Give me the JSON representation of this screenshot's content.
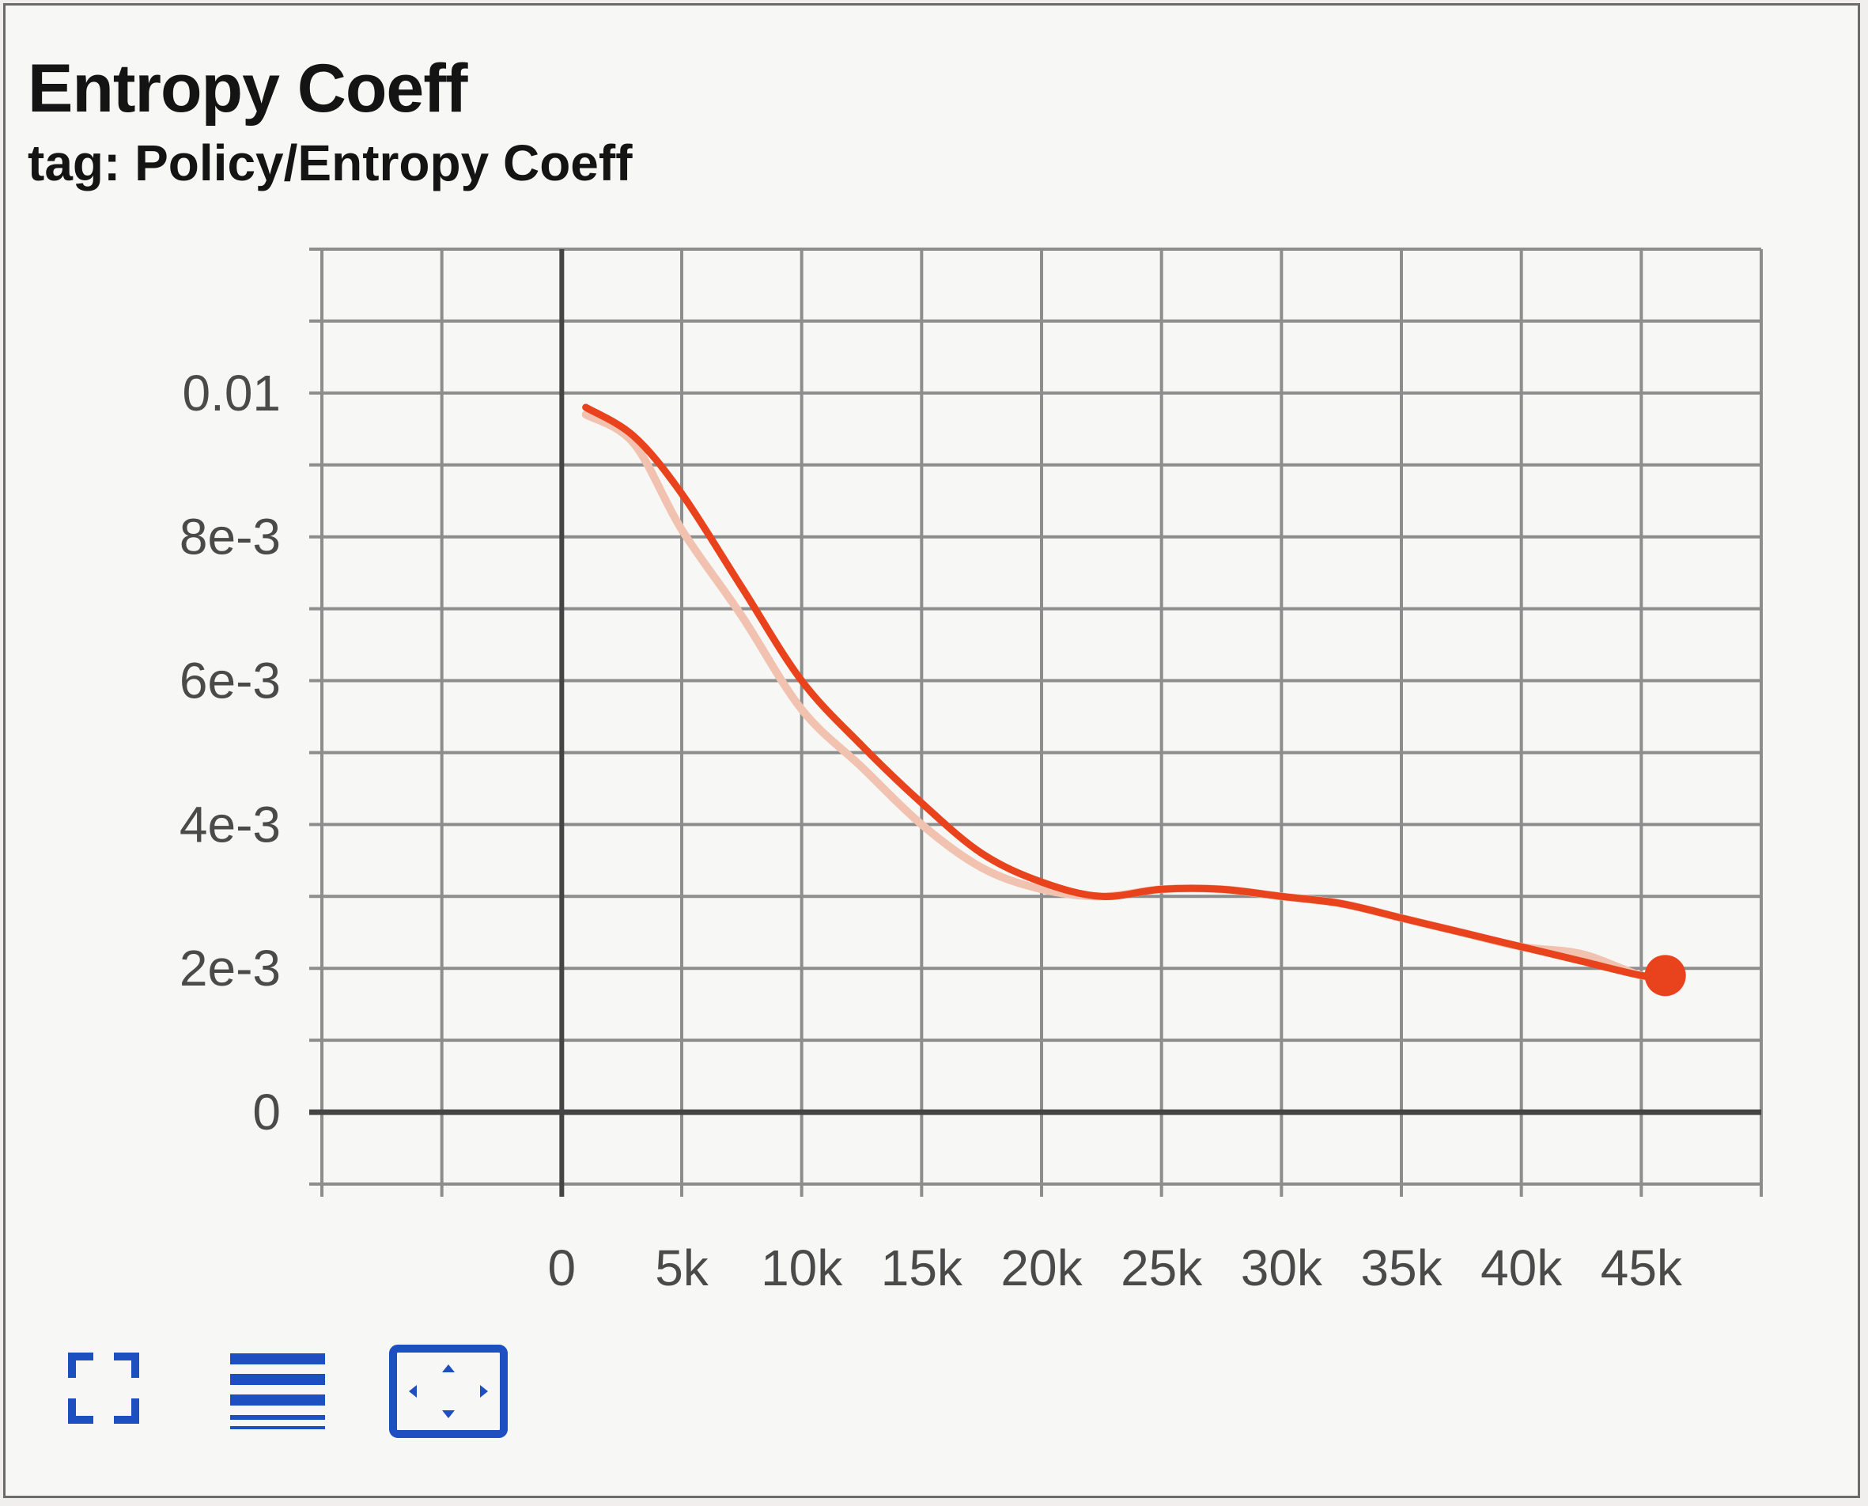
{
  "card": {
    "title": "Entropy Coeff",
    "subtitle": "tag: Policy/Entropy Coeff"
  },
  "chart_data": {
    "type": "line",
    "title": "Entropy Coeff",
    "subtitle": "tag: Policy/Entropy Coeff",
    "xlabel": "",
    "ylabel": "",
    "xlim": [
      -10000,
      50000
    ],
    "ylim": [
      -0.001,
      0.012
    ],
    "x_ticks": [
      0,
      5000,
      10000,
      15000,
      20000,
      25000,
      30000,
      35000,
      40000,
      45000
    ],
    "x_tick_labels": [
      "0",
      "5k",
      "10k",
      "15k",
      "20k",
      "25k",
      "30k",
      "35k",
      "40k",
      "45k"
    ],
    "y_ticks": [
      0,
      0.002,
      0.004,
      0.006,
      0.008,
      0.01
    ],
    "y_tick_labels": [
      "0",
      "2e-3",
      "4e-3",
      "6e-3",
      "8e-3",
      "0.01"
    ],
    "grid": true,
    "series": [
      {
        "color": "#f2c2b0",
        "x": [
          1000,
          3000,
          5000,
          7500,
          10000,
          12500,
          15000,
          17500,
          20000,
          22500,
          25000,
          27500,
          30000,
          32500,
          35000,
          37500,
          40000,
          42500,
          45000,
          46000
        ],
        "y": [
          0.0097,
          0.0093,
          0.0081,
          0.0069,
          0.0056,
          0.0048,
          0.004,
          0.0034,
          0.0031,
          0.003,
          0.0031,
          0.0031,
          0.003,
          0.0029,
          0.0027,
          0.0025,
          0.0023,
          0.0022,
          0.0019,
          0.0019
        ]
      },
      {
        "color": "#e8431d",
        "x": [
          1000,
          3000,
          5000,
          7500,
          10000,
          12500,
          15000,
          17500,
          20000,
          22500,
          25000,
          27500,
          30000,
          32500,
          35000,
          37500,
          40000,
          42500,
          45000,
          46000
        ],
        "y": [
          0.0098,
          0.0094,
          0.0086,
          0.0073,
          0.006,
          0.0051,
          0.0043,
          0.0036,
          0.0032,
          0.003,
          0.0031,
          0.0031,
          0.003,
          0.0029,
          0.0027,
          0.0025,
          0.0023,
          0.0021,
          0.0019,
          0.0019
        ]
      }
    ],
    "highlight": {
      "x": 46000,
      "y": 0.0019,
      "color": "#e8431d"
    }
  },
  "toolbar": {
    "accent": "#1d4fc0",
    "icons": [
      "fullscreen-icon",
      "legend-lines-icon",
      "fit-domain-icon"
    ]
  }
}
